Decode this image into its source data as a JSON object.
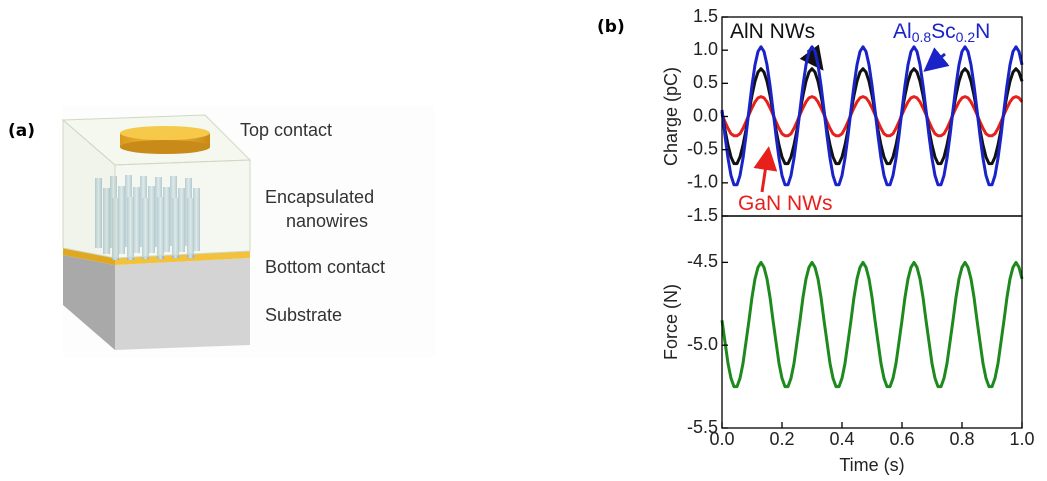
{
  "panels": {
    "a": "(a)",
    "b": "(b)"
  },
  "diagram": {
    "labels": [
      "Top contact",
      "Encapsulated",
      "nanowires",
      "Bottom contact",
      "Substrate"
    ]
  },
  "chart_data": [
    {
      "type": "line",
      "ylabel": "Charge (pC)",
      "xlim": [
        0,
        1
      ],
      "ylim": [
        -1.5,
        1.5
      ],
      "yticks": [
        -1.5,
        {
          "value": -1,
          "label": "-1.0"
        },
        -0.5,
        {
          "value": 0,
          "label": "0.0"
        },
        0.5,
        {
          "value": 1,
          "label": "1.0"
        },
        1.5
      ],
      "x": [
        0,
        0.01,
        0.02,
        0.03,
        0.04,
        0.05,
        0.06,
        0.07,
        0.08,
        0.09,
        0.1,
        0.11,
        0.12,
        0.13,
        0.14,
        0.15,
        0.16,
        0.17,
        0.18,
        0.19,
        0.2,
        0.21,
        0.22,
        0.23,
        0.24,
        0.25,
        0.26,
        0.27,
        0.28,
        0.29,
        0.3,
        0.31,
        0.32,
        0.33,
        0.34,
        0.35,
        0.36,
        0.37,
        0.38,
        0.39,
        0.4,
        0.41,
        0.42,
        0.43,
        0.44,
        0.45,
        0.46,
        0.47,
        0.48,
        0.49,
        0.5,
        0.51,
        0.52,
        0.53,
        0.54,
        0.55,
        0.56,
        0.57,
        0.58,
        0.59,
        0.6,
        0.61,
        0.62,
        0.63,
        0.64,
        0.65,
        0.66,
        0.67,
        0.68,
        0.69,
        0.7,
        0.71,
        0.72,
        0.73,
        0.74,
        0.75,
        0.76,
        0.77,
        0.78,
        0.79,
        0.8,
        0.81,
        0.82,
        0.83,
        0.84,
        0.85,
        0.86,
        0.87,
        0.88,
        0.89,
        0.9,
        0.91,
        0.92,
        0.93,
        0.94,
        0.95,
        0.96,
        0.97,
        0.98,
        0.99,
        1
      ],
      "series": [
        {
          "color": "#e8201c",
          "values": [
            0.03,
            -0.08,
            -0.18,
            -0.26,
            -0.29,
            -0.29,
            -0.26,
            -0.18,
            -0.08,
            0.03,
            0.13,
            0.22,
            0.28,
            0.3,
            0.28,
            0.22,
            0.13,
            0.03,
            -0.08,
            -0.18,
            -0.26,
            -0.29,
            -0.29,
            -0.26,
            -0.18,
            -0.08,
            0.03,
            0.13,
            0.22,
            0.28,
            0.3,
            0.28,
            0.22,
            0.13,
            0.03,
            -0.08,
            -0.18,
            -0.26,
            -0.29,
            -0.29,
            -0.26,
            -0.18,
            -0.08,
            0.03,
            0.13,
            0.22,
            0.28,
            0.3,
            0.28,
            0.22,
            0.13,
            0.03,
            -0.08,
            -0.18,
            -0.26,
            -0.29,
            -0.29,
            -0.26,
            -0.18,
            -0.08,
            0.03,
            0.13,
            0.22,
            0.28,
            0.3,
            0.28,
            0.22,
            0.13,
            0.03,
            -0.08,
            -0.18,
            -0.26,
            -0.29,
            -0.29,
            -0.26,
            -0.18,
            -0.08,
            0.03,
            0.13,
            0.22,
            0.28,
            0.3,
            0.28,
            0.22,
            0.13,
            0.03,
            -0.08,
            -0.18,
            -0.26,
            -0.29,
            -0.29,
            -0.26,
            -0.18,
            -0.08,
            0.03,
            0.13,
            0.22,
            0.28,
            0.3,
            0.28,
            0.22
          ]
        },
        {
          "color": "#111111",
          "values": [
            0.07,
            -0.2,
            -0.43,
            -0.61,
            -0.71,
            -0.71,
            -0.61,
            -0.43,
            -0.2,
            0.07,
            0.32,
            0.53,
            0.67,
            0.72,
            0.67,
            0.53,
            0.32,
            0.07,
            -0.2,
            -0.43,
            -0.61,
            -0.71,
            -0.71,
            -0.61,
            -0.43,
            -0.2,
            0.07,
            0.32,
            0.53,
            0.67,
            0.72,
            0.67,
            0.53,
            0.32,
            0.07,
            -0.2,
            -0.43,
            -0.61,
            -0.71,
            -0.71,
            -0.61,
            -0.43,
            -0.2,
            0.07,
            0.32,
            0.53,
            0.67,
            0.72,
            0.67,
            0.53,
            0.32,
            0.07,
            -0.2,
            -0.43,
            -0.61,
            -0.71,
            -0.71,
            -0.61,
            -0.43,
            -0.2,
            0.07,
            0.32,
            0.53,
            0.67,
            0.72,
            0.67,
            0.53,
            0.32,
            0.07,
            -0.2,
            -0.43,
            -0.61,
            -0.71,
            -0.71,
            -0.61,
            -0.43,
            -0.2,
            0.07,
            0.32,
            0.53,
            0.67,
            0.72,
            0.67,
            0.53,
            0.32,
            0.07,
            -0.2,
            -0.43,
            -0.61,
            -0.71,
            -0.71,
            -0.61,
            -0.43,
            -0.2,
            0.07,
            0.32,
            0.53,
            0.67,
            0.72,
            0.67,
            0.53
          ]
        },
        {
          "color": "#1a23c8",
          "values": [
            0.1,
            -0.29,
            -0.63,
            -0.89,
            -1.03,
            -1.03,
            -0.89,
            -0.63,
            -0.29,
            0.1,
            0.47,
            0.78,
            0.98,
            1.05,
            0.98,
            0.78,
            0.47,
            0.1,
            -0.29,
            -0.63,
            -0.89,
            -1.03,
            -1.03,
            -0.89,
            -0.63,
            -0.29,
            0.1,
            0.47,
            0.78,
            0.98,
            1.05,
            0.98,
            0.78,
            0.47,
            0.1,
            -0.29,
            -0.63,
            -0.89,
            -1.03,
            -1.03,
            -0.89,
            -0.63,
            -0.29,
            0.1,
            0.47,
            0.78,
            0.98,
            1.05,
            0.98,
            0.78,
            0.47,
            0.1,
            -0.29,
            -0.63,
            -0.89,
            -1.03,
            -1.03,
            -0.89,
            -0.63,
            -0.29,
            0.1,
            0.47,
            0.78,
            0.98,
            1.05,
            0.98,
            0.78,
            0.47,
            0.1,
            -0.29,
            -0.63,
            -0.89,
            -1.03,
            -1.03,
            -0.89,
            -0.63,
            -0.29,
            0.1,
            0.47,
            0.78,
            0.98,
            1.05,
            0.98,
            0.78,
            0.47,
            0.1,
            -0.29,
            -0.63,
            -0.89,
            -1.03,
            -1.03,
            -0.89,
            -0.63,
            -0.29,
            0.1,
            0.47,
            0.78,
            0.98,
            1.05,
            0.98,
            0.78
          ]
        }
      ],
      "annotations": [
        {
          "color": "#111111",
          "parts": [
            {
              "text": "AlN NWs"
            }
          ]
        },
        {
          "color": "#1a23c8",
          "parts": [
            {
              "text": "Al"
            },
            {
              "text": "0.8",
              "sub": true
            },
            {
              "text": "Sc"
            },
            {
              "text": "0.2",
              "sub": true
            },
            {
              "text": "N"
            }
          ]
        },
        {
          "color": "#e8201c",
          "parts": [
            {
              "text": "GaN NWs"
            }
          ]
        }
      ]
    },
    {
      "type": "line",
      "ylabel": "Force (N)",
      "xlabel": "Time (s)",
      "xlim": [
        0,
        1
      ],
      "ylim": [
        -5.5,
        -4.22
      ],
      "yticks": [
        -5.5,
        {
          "value": -5,
          "label": "-5.0"
        },
        -4.5
      ],
      "xticks": [
        {
          "value": 0,
          "label": "0.0"
        },
        0.2,
        0.4,
        0.6,
        0.8,
        {
          "value": 1,
          "label": "1.0"
        }
      ],
      "x": [
        0,
        0.01,
        0.02,
        0.03,
        0.04,
        0.05,
        0.06,
        0.07,
        0.08,
        0.09,
        0.1,
        0.11,
        0.12,
        0.13,
        0.14,
        0.15,
        0.16,
        0.17,
        0.18,
        0.19,
        0.2,
        0.21,
        0.22,
        0.23,
        0.24,
        0.25,
        0.26,
        0.27,
        0.28,
        0.29,
        0.3,
        0.31,
        0.32,
        0.33,
        0.34,
        0.35,
        0.36,
        0.37,
        0.38,
        0.39,
        0.4,
        0.41,
        0.42,
        0.43,
        0.44,
        0.45,
        0.46,
        0.47,
        0.48,
        0.49,
        0.5,
        0.51,
        0.52,
        0.53,
        0.54,
        0.55,
        0.56,
        0.57,
        0.58,
        0.59,
        0.6,
        0.61,
        0.62,
        0.63,
        0.64,
        0.65,
        0.66,
        0.67,
        0.68,
        0.69,
        0.7,
        0.71,
        0.72,
        0.73,
        0.74,
        0.75,
        0.76,
        0.77,
        0.78,
        0.79,
        0.8,
        0.81,
        0.82,
        0.83,
        0.84,
        0.85,
        0.86,
        0.87,
        0.88,
        0.89,
        0.9,
        0.91,
        0.92,
        0.93,
        0.94,
        0.95,
        0.96,
        0.97,
        0.98,
        0.99,
        1
      ],
      "series": [
        {
          "color": "#1e8a1e",
          "values": [
            -4.85,
            -4.98,
            -5.11,
            -5.2,
            -5.25,
            -5.25,
            -5.2,
            -5.11,
            -4.98,
            -4.85,
            -4.71,
            -4.6,
            -4.53,
            -4.5,
            -4.53,
            -4.6,
            -4.71,
            -4.85,
            -4.98,
            -5.11,
            -5.2,
            -5.25,
            -5.25,
            -5.2,
            -5.11,
            -4.98,
            -4.85,
            -4.71,
            -4.6,
            -4.53,
            -4.5,
            -4.53,
            -4.6,
            -4.71,
            -4.85,
            -4.98,
            -5.11,
            -5.2,
            -5.25,
            -5.25,
            -5.2,
            -5.11,
            -4.98,
            -4.85,
            -4.71,
            -4.6,
            -4.53,
            -4.5,
            -4.53,
            -4.6,
            -4.71,
            -4.85,
            -4.98,
            -5.11,
            -5.2,
            -5.25,
            -5.25,
            -5.2,
            -5.11,
            -4.98,
            -4.85,
            -4.71,
            -4.6,
            -4.53,
            -4.5,
            -4.53,
            -4.6,
            -4.71,
            -4.85,
            -4.98,
            -5.11,
            -5.2,
            -5.25,
            -5.25,
            -5.2,
            -5.11,
            -4.98,
            -4.85,
            -4.71,
            -4.6,
            -4.53,
            -4.5,
            -4.53,
            -4.6,
            -4.71,
            -4.85,
            -4.98,
            -5.11,
            -5.2,
            -5.25,
            -5.25,
            -5.2,
            -5.11,
            -4.98,
            -4.85,
            -4.71,
            -4.6,
            -4.53,
            -4.5,
            -4.53,
            -4.6
          ]
        }
      ]
    }
  ]
}
